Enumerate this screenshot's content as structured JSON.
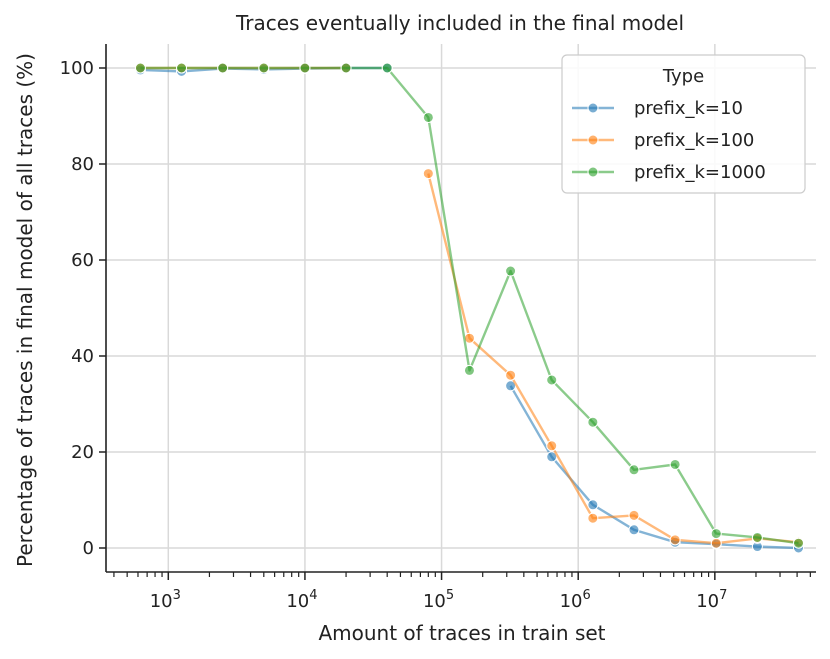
{
  "chart_data": {
    "type": "line",
    "title": "Traces eventually included in the final model",
    "xlabel": "Amount of traces in train set",
    "ylabel": "Percentage of traces in final model of all traces (%)",
    "x_scale": "log",
    "xlim": [
      350,
      55000000
    ],
    "ylim": [
      -5,
      105
    ],
    "x_ticks": [
      {
        "value": 1000,
        "base": "10",
        "exp": "3"
      },
      {
        "value": 10000,
        "base": "10",
        "exp": "4"
      },
      {
        "value": 100000,
        "base": "10",
        "exp": "5"
      },
      {
        "value": 1000000,
        "base": "10",
        "exp": "6"
      },
      {
        "value": 10000000,
        "base": "10",
        "exp": "7"
      }
    ],
    "y_ticks": [
      0,
      20,
      40,
      60,
      80,
      100
    ],
    "grid": true,
    "legend": {
      "title": "Type",
      "placement": "top-right"
    },
    "series": [
      {
        "name": "prefix_k=10",
        "color": "#1f77b4",
        "x": [
          625,
          1250,
          2500,
          5000,
          10000,
          20000,
          40000
        ],
        "y": [
          99.6,
          99.3,
          99.9,
          99.7,
          99.9,
          100,
          100
        ]
      },
      {
        "name": "prefix_k=10",
        "color": "#1f77b4",
        "x": [
          320000,
          640000,
          1280000,
          2560000,
          5120000,
          10240000,
          20480000,
          40960000
        ],
        "y": [
          33.8,
          19.0,
          9.0,
          3.8,
          1.2,
          0.8,
          0.3,
          0.0
        ]
      },
      {
        "name": "prefix_k=100",
        "color": "#ff7f0e",
        "x": [
          625,
          1250,
          2500,
          5000,
          10000,
          20000
        ],
        "y": [
          100,
          100,
          100,
          100,
          100,
          100
        ]
      },
      {
        "name": "prefix_k=100",
        "color": "#ff7f0e",
        "x": [
          80000,
          160000,
          320000,
          640000,
          1280000,
          2560000,
          5120000,
          10240000,
          20480000,
          40960000
        ],
        "y": [
          78,
          43.7,
          36,
          21.3,
          6.2,
          6.8,
          1.7,
          1.0,
          2.0,
          1.2
        ]
      },
      {
        "name": "prefix_k=1000",
        "color": "#2ca02c",
        "x": [
          625,
          1250,
          2500,
          5000,
          10000,
          20000,
          40000,
          80000,
          160000,
          320000,
          640000,
          1280000,
          2560000,
          5120000,
          10240000,
          20480000,
          40960000
        ],
        "y": [
          100,
          100,
          100,
          100,
          100,
          100,
          100,
          89.7,
          37.0,
          57.7,
          35.0,
          26.2,
          16.3,
          17.4,
          3.0,
          2.2,
          1.0
        ]
      }
    ]
  }
}
